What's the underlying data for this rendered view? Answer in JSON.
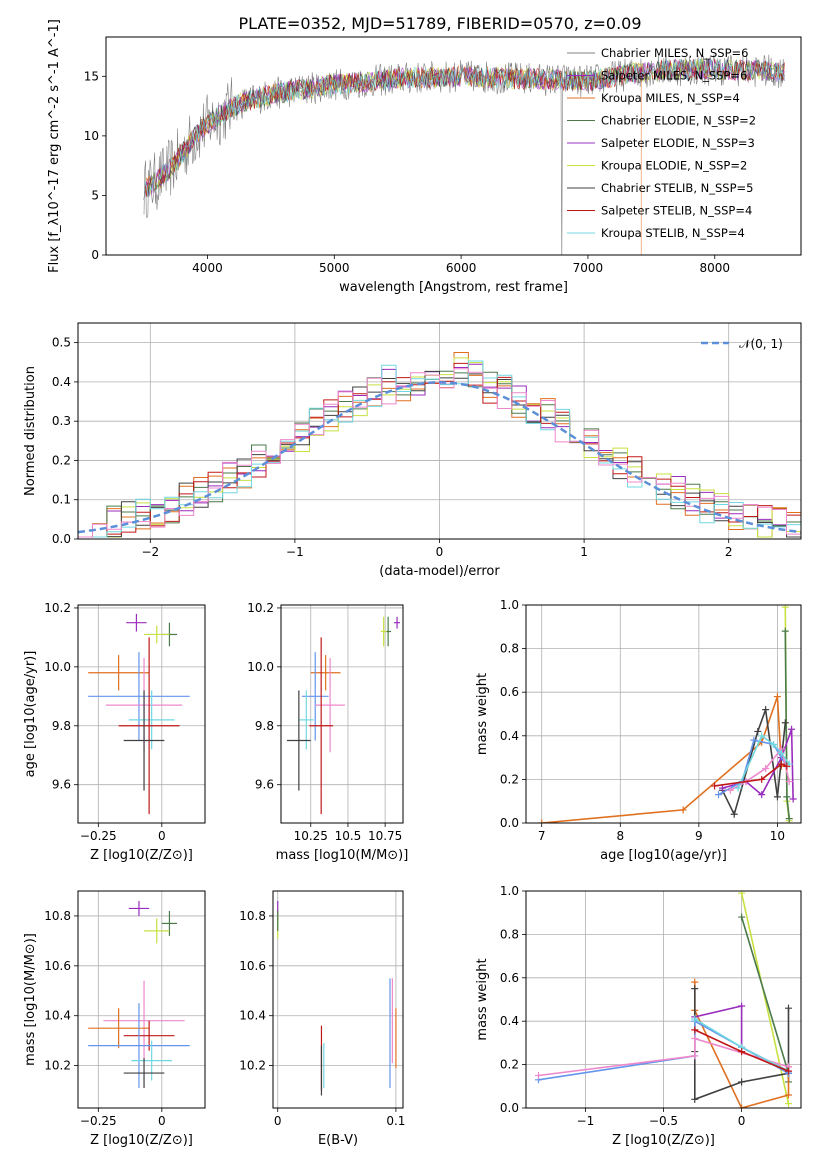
{
  "title": "PLATE=0352, MJD=51789, FIBERID=0570, z=0.09",
  "colors": [
    "#808080",
    "#9a2cbd",
    "#e07020",
    "#4a7a4a",
    "#9a30c0",
    "#c8e040",
    "#404040",
    "#c01818",
    "#70d8e0",
    "#6495ed",
    "#ee88cc",
    "#888888"
  ],
  "chart_data": [
    {
      "id": "spectrum",
      "type": "line",
      "xlabel": "wavelength [Angstrom, rest frame]",
      "ylabel": "Flux [f_λ10^-17 erg cm^-2 s^-1 A^-1]",
      "xlim": [
        3200,
        8680
      ],
      "ylim": [
        0,
        18.3
      ],
      "xticks": [
        4000,
        5000,
        6000,
        7000,
        8000
      ],
      "yticks": [
        0,
        5,
        10,
        15
      ],
      "legend": "upper right",
      "series": [
        {
          "name": "Chabrier MILES, N_SSP=6",
          "color": "#808080"
        },
        {
          "name": "Salpeter MILES, N_SSP=6",
          "color": "#9a2cbd"
        },
        {
          "name": "Kroupa MILES, N_SSP=4",
          "color": "#e07020"
        },
        {
          "name": "Chabrier ELODIE, N_SSP=2",
          "color": "#4a7a4a"
        },
        {
          "name": "Salpeter ELODIE, N_SSP=3",
          "color": "#9a30c0"
        },
        {
          "name": "Kroupa ELODIE, N_SSP=2",
          "color": "#c8e040"
        },
        {
          "name": "Chabrier STELIB, N_SSP=5",
          "color": "#404040"
        },
        {
          "name": "Salpeter STELIB, N_SSP=4",
          "color": "#c01818"
        },
        {
          "name": "Kroupa STELIB, N_SSP=4",
          "color": "#70d8e0"
        }
      ],
      "continuum": {
        "x": [
          3500,
          3600,
          3700,
          3800,
          3900,
          4000,
          4200,
          4500,
          5000,
          5500,
          6000,
          6500,
          7000,
          7500,
          8000,
          8500
        ],
        "y": [
          5.5,
          6.2,
          7.2,
          8.5,
          10.0,
          11.0,
          12.5,
          13.5,
          14.3,
          14.8,
          15.0,
          14.8,
          14.6,
          15.5,
          15.6,
          15.4
        ]
      }
    },
    {
      "id": "residuals",
      "type": "histogram",
      "xlabel": "(data-model)/error",
      "ylabel": "Normed distribution",
      "xlim": [
        -2.5,
        2.5
      ],
      "ylim": [
        0,
        0.55
      ],
      "xticks": [
        -2,
        -1,
        0,
        1,
        2
      ],
      "yticks": [
        0.0,
        0.1,
        0.2,
        0.3,
        0.4,
        0.5
      ],
      "legend_label": "𝒩(0, 1)",
      "legend_color": "#5b8fd8",
      "bin_width": 0.1
    },
    {
      "id": "age-vs-Z",
      "type": "scatter",
      "xlabel": "Z [log10(Z/Z⊙)]",
      "ylabel": "age  [log10(age/yr)]",
      "xlim": [
        -0.33,
        0.17
      ],
      "ylim": [
        9.47,
        10.21
      ],
      "xticks": [
        -0.25,
        0.0
      ],
      "yticks": [
        9.6,
        9.8,
        10.0,
        10.2
      ],
      "points": [
        {
          "x": -0.1,
          "y": 10.15,
          "xerr": 0.04,
          "yerr": 0.03,
          "color": "#9a2cbd"
        },
        {
          "x": 0.03,
          "y": 10.11,
          "xerr": 0.03,
          "yerr": 0.04,
          "color": "#4a7a4a"
        },
        {
          "x": -0.02,
          "y": 10.11,
          "xerr": 0.05,
          "yerr": 0.03,
          "color": "#c8e040"
        },
        {
          "x": -0.17,
          "y": 9.98,
          "xerr": 0.12,
          "yerr": 0.06,
          "color": "#e07020"
        },
        {
          "x": -0.09,
          "y": 9.9,
          "xerr": 0.2,
          "yerr": 0.15,
          "color": "#6495ed"
        },
        {
          "x": -0.07,
          "y": 9.87,
          "xerr": 0.15,
          "yerr": 0.16,
          "color": "#ee88cc"
        },
        {
          "x": -0.04,
          "y": 9.82,
          "xerr": 0.09,
          "yerr": 0.1,
          "color": "#70d8e0"
        },
        {
          "x": -0.05,
          "y": 9.8,
          "xerr": 0.12,
          "yerr": 0.3,
          "color": "#c01818"
        },
        {
          "x": -0.07,
          "y": 9.75,
          "xerr": 0.08,
          "yerr": 0.17,
          "color": "#404040"
        }
      ]
    },
    {
      "id": "age-vs-mass",
      "type": "scatter",
      "xlabel": "mass [log10(M/M⊙)]",
      "ylabel": "",
      "xlim": [
        10.05,
        10.87
      ],
      "ylim": [
        9.47,
        10.21
      ],
      "xticks": [
        10.25,
        10.5,
        10.75
      ],
      "yticks": [
        9.6,
        9.8,
        10.0,
        10.2
      ],
      "points": [
        {
          "x": 10.83,
          "y": 10.15,
          "xerr": 0.02,
          "yerr": 0.02,
          "color": "#9a2cbd"
        },
        {
          "x": 10.77,
          "y": 10.12,
          "xerr": 0.02,
          "yerr": 0.05,
          "color": "#4a7a4a"
        },
        {
          "x": 10.74,
          "y": 10.12,
          "xerr": 0.02,
          "yerr": 0.05,
          "color": "#c8e040"
        },
        {
          "x": 10.35,
          "y": 9.98,
          "xerr": 0.1,
          "yerr": 0.06,
          "color": "#e07020"
        },
        {
          "x": 10.28,
          "y": 9.9,
          "xerr": 0.09,
          "yerr": 0.15,
          "color": "#6495ed"
        },
        {
          "x": 10.38,
          "y": 9.87,
          "xerr": 0.1,
          "yerr": 0.16,
          "color": "#ee88cc"
        },
        {
          "x": 10.22,
          "y": 9.82,
          "xerr": 0.05,
          "yerr": 0.1,
          "color": "#70d8e0"
        },
        {
          "x": 10.32,
          "y": 9.8,
          "xerr": 0.08,
          "yerr": 0.3,
          "color": "#c01818"
        },
        {
          "x": 10.17,
          "y": 9.75,
          "xerr": 0.08,
          "yerr": 0.17,
          "color": "#404040"
        }
      ]
    },
    {
      "id": "weight-vs-age",
      "type": "line",
      "xlabel": "age  [log10(age/yr)]",
      "ylabel": "mass weight",
      "xlim": [
        6.8,
        10.3
      ],
      "ylim": [
        0,
        1.0
      ],
      "xticks": [
        7,
        8,
        9,
        10
      ],
      "yticks": [
        0.0,
        0.2,
        0.4,
        0.6,
        0.8,
        1.0
      ],
      "series": [
        {
          "color": "#e07020",
          "x": [
            7.0,
            8.8,
            9.8,
            10.0,
            10.05
          ],
          "y": [
            0.0,
            0.06,
            0.37,
            0.58,
            0.26
          ]
        },
        {
          "color": "#c8e040",
          "x": [
            10.1,
            10.12,
            10.15
          ],
          "y": [
            0.99,
            0.1,
            0.01
          ]
        },
        {
          "color": "#4a7a4a",
          "x": [
            10.1,
            10.12,
            10.15
          ],
          "y": [
            0.88,
            0.12,
            0.02
          ]
        },
        {
          "color": "#404040",
          "x": [
            9.3,
            9.45,
            9.75,
            9.85,
            10.0,
            10.1
          ],
          "y": [
            0.15,
            0.04,
            0.42,
            0.52,
            0.12,
            0.46
          ]
        },
        {
          "color": "#9a2cbd",
          "x": [
            9.3,
            9.6,
            9.8,
            10.05,
            10.18,
            10.2
          ],
          "y": [
            0.16,
            0.19,
            0.13,
            0.3,
            0.43,
            0.11
          ]
        },
        {
          "color": "#6495ed",
          "x": [
            9.25,
            9.55,
            9.7,
            9.95,
            10.1
          ],
          "y": [
            0.13,
            0.19,
            0.38,
            0.36,
            0.27
          ]
        },
        {
          "color": "#ee88cc",
          "x": [
            9.4,
            9.6,
            9.85,
            10.05,
            10.15
          ],
          "y": [
            0.15,
            0.19,
            0.25,
            0.34,
            0.19
          ]
        },
        {
          "color": "#70d8e0",
          "x": [
            9.5,
            9.8,
            9.95,
            10.05,
            10.15
          ],
          "y": [
            0.16,
            0.4,
            0.36,
            0.32,
            0.27
          ]
        },
        {
          "color": "#c01818",
          "x": [
            9.2,
            9.8,
            10.05,
            10.12
          ],
          "y": [
            0.17,
            0.2,
            0.27,
            0.26
          ]
        }
      ]
    },
    {
      "id": "mass-vs-Z",
      "type": "scatter",
      "xlabel": "Z [log10(Z/Z⊙)]",
      "ylabel": "mass [log10(M/M⊙)]",
      "xlim": [
        -0.33,
        0.17
      ],
      "ylim": [
        10.03,
        10.9
      ],
      "xticks": [
        -0.25,
        0.0
      ],
      "yticks": [
        10.2,
        10.4,
        10.6,
        10.8
      ],
      "points": [
        {
          "x": -0.09,
          "y": 10.83,
          "xerr": 0.04,
          "yerr": 0.03,
          "color": "#9a2cbd"
        },
        {
          "x": 0.03,
          "y": 10.77,
          "xerr": 0.03,
          "yerr": 0.05,
          "color": "#4a7a4a"
        },
        {
          "x": -0.02,
          "y": 10.74,
          "xerr": 0.05,
          "yerr": 0.05,
          "color": "#c8e040"
        },
        {
          "x": -0.07,
          "y": 10.38,
          "xerr": 0.16,
          "yerr": 0.16,
          "color": "#ee88cc"
        },
        {
          "x": -0.17,
          "y": 10.35,
          "xerr": 0.12,
          "yerr": 0.08,
          "color": "#e07020"
        },
        {
          "x": -0.05,
          "y": 10.32,
          "xerr": 0.1,
          "yerr": 0.06,
          "color": "#c01818"
        },
        {
          "x": -0.09,
          "y": 10.28,
          "xerr": 0.2,
          "yerr": 0.17,
          "color": "#6495ed"
        },
        {
          "x": -0.04,
          "y": 10.22,
          "xerr": 0.08,
          "yerr": 0.08,
          "color": "#70d8e0"
        },
        {
          "x": -0.07,
          "y": 10.17,
          "xerr": 0.08,
          "yerr": 0.06,
          "color": "#404040"
        }
      ]
    },
    {
      "id": "mass-vs-EBV",
      "type": "scatter",
      "xlabel": "E(B-V)",
      "ylabel": "",
      "xlim": [
        -0.004,
        0.106
      ],
      "ylim": [
        10.03,
        10.9
      ],
      "xticks": [
        0.0,
        0.1
      ],
      "yticks": [
        10.2,
        10.4,
        10.6,
        10.8
      ],
      "points": [
        {
          "x": 0.0,
          "y": 10.82,
          "xerr": 0,
          "yerr": 0.04,
          "color": "#9a2cbd"
        },
        {
          "x": 0.0,
          "y": 10.76,
          "xerr": 0,
          "yerr": 0.05,
          "color": "#c8e040"
        },
        {
          "x": 0.0,
          "y": 10.78,
          "xerr": 0,
          "yerr": 0.04,
          "color": "#4a7a4a"
        },
        {
          "x": 0.037,
          "y": 10.23,
          "xerr": 0,
          "yerr": 0.13,
          "color": "#c01818"
        },
        {
          "x": 0.037,
          "y": 10.18,
          "xerr": 0,
          "yerr": 0.1,
          "color": "#404040"
        },
        {
          "x": 0.039,
          "y": 10.2,
          "xerr": 0,
          "yerr": 0.09,
          "color": "#70d8e0"
        },
        {
          "x": 0.095,
          "y": 10.33,
          "xerr": 0,
          "yerr": 0.22,
          "color": "#6495ed"
        },
        {
          "x": 0.097,
          "y": 10.38,
          "xerr": 0,
          "yerr": 0.17,
          "color": "#ee88cc"
        },
        {
          "x": 0.1,
          "y": 10.31,
          "xerr": 0,
          "yerr": 0.12,
          "color": "#e07020"
        }
      ]
    },
    {
      "id": "weight-vs-Z",
      "type": "line",
      "xlabel": "Z [log10(Z/Z⊙)]",
      "ylabel": "mass weight",
      "xlim": [
        -1.38,
        0.38
      ],
      "ylim": [
        0,
        1.0
      ],
      "xticks": [
        -1.0,
        -0.5,
        0.0
      ],
      "yticks": [
        0.0,
        0.2,
        0.4,
        0.6,
        0.8,
        1.0
      ],
      "series": [
        {
          "color": "#c8e040",
          "x": [
            0.0,
            0.3
          ],
          "y": [
            0.99,
            0.02
          ]
        },
        {
          "color": "#4a7a4a",
          "x": [
            0.0,
            0.3,
            0.3
          ],
          "y": [
            0.88,
            0.16,
            0.12
          ]
        },
        {
          "color": "#e07020",
          "x": [
            -0.3,
            -0.3,
            0.0,
            0.3,
            0.3
          ],
          "y": [
            0.58,
            0.45,
            0.0,
            0.06,
            0.19
          ]
        },
        {
          "color": "#9a2cbd",
          "x": [
            -0.3,
            0.0,
            0.0,
            0.3
          ],
          "y": [
            0.42,
            0.47,
            0.28,
            0.17
          ]
        },
        {
          "color": "#404040",
          "x": [
            -0.3,
            -0.3,
            -0.3,
            0.0,
            0.3,
            0.3
          ],
          "y": [
            0.55,
            0.26,
            0.04,
            0.12,
            0.16,
            0.46
          ]
        },
        {
          "color": "#6495ed",
          "x": [
            -1.3,
            -0.3,
            -0.3,
            0.3
          ],
          "y": [
            0.13,
            0.24,
            0.4,
            0.16
          ]
        },
        {
          "color": "#ee88cc",
          "x": [
            -1.3,
            -0.3,
            -0.3,
            0.3
          ],
          "y": [
            0.15,
            0.24,
            0.32,
            0.19
          ]
        },
        {
          "color": "#70d8e0",
          "x": [
            -0.3,
            0.0,
            0.3
          ],
          "y": [
            0.41,
            0.28,
            0.17
          ]
        },
        {
          "color": "#c01818",
          "x": [
            -0.3,
            0.0,
            0.3
          ],
          "y": [
            0.36,
            0.26,
            0.17
          ]
        }
      ]
    }
  ]
}
